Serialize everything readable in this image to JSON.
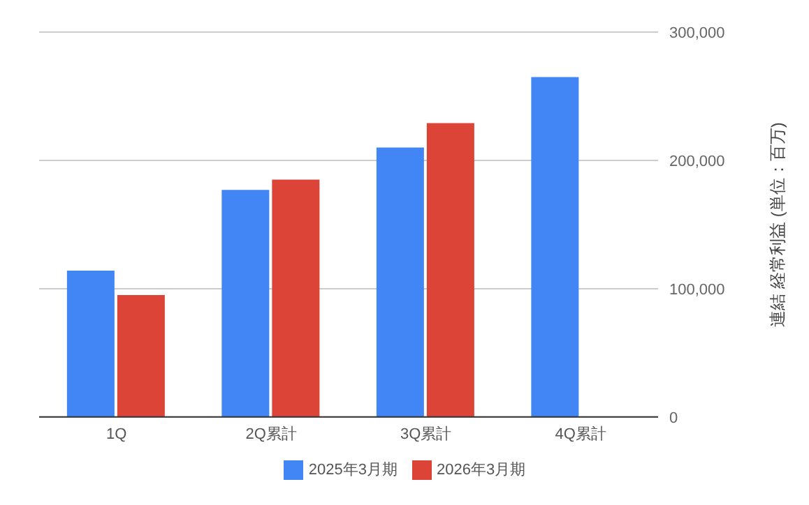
{
  "chart_data": {
    "type": "bar",
    "categories": [
      "1Q",
      "2Q累計",
      "3Q累計",
      "4Q累計"
    ],
    "series": [
      {
        "name": "2025年3月期",
        "color": "#4285f4",
        "values": [
          114000,
          177000,
          210000,
          265000
        ]
      },
      {
        "name": "2026年3月期",
        "color": "#db4437",
        "values": [
          95000,
          185000,
          229000,
          null
        ]
      }
    ],
    "ylabel": "連結 経常利益 (単位：百万)",
    "ylim": [
      0,
      300000
    ],
    "yticks": [
      {
        "value": 0,
        "label": "0"
      },
      {
        "value": 100000,
        "label": "100,000"
      },
      {
        "value": 200000,
        "label": "200,000"
      },
      {
        "value": 300000,
        "label": "300,000"
      }
    ],
    "grid": "y",
    "legend": "bottom"
  }
}
